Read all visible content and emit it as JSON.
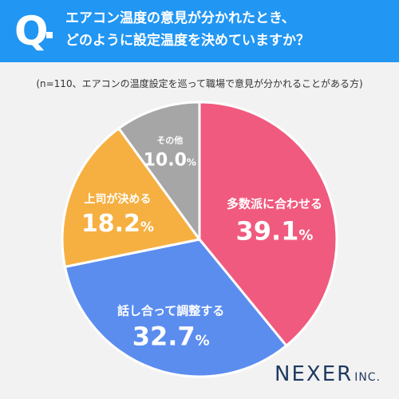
{
  "header": {
    "q_label": "Q",
    "question_line1": "エアコン温度の意見が分かれたとき、",
    "question_line2": "どのように設定温度を決めていますか？"
  },
  "note": "(n=110、エアコンの温度設定を巡って職場で意見が分かれることがある方)",
  "logo": {
    "main": "NEXER",
    "suffix": "INC."
  },
  "colors": {
    "header_bg": "#2196f3",
    "background": "#f2f2f2",
    "slice_majority": "#f05a7e",
    "slice_discuss": "#5b8def",
    "slice_boss": "#f6b042",
    "slice_other": "#a6a6a6",
    "label_text": "#ffffff"
  },
  "chart_data": {
    "type": "pie",
    "title": "",
    "slices": [
      {
        "label": "多数派に合わせる",
        "value": 39.1,
        "display": "39.1",
        "color": "#f05a7e"
      },
      {
        "label": "話し合って調整する",
        "value": 32.7,
        "display": "32.7",
        "color": "#5b8def"
      },
      {
        "label": "上司が決める",
        "value": 18.2,
        "display": "18.2",
        "color": "#f6b042"
      },
      {
        "label": "その他",
        "value": 10.0,
        "display": "10.0",
        "color": "#a6a6a6"
      }
    ],
    "unit": "%",
    "start": "top",
    "direction": "clockwise"
  }
}
